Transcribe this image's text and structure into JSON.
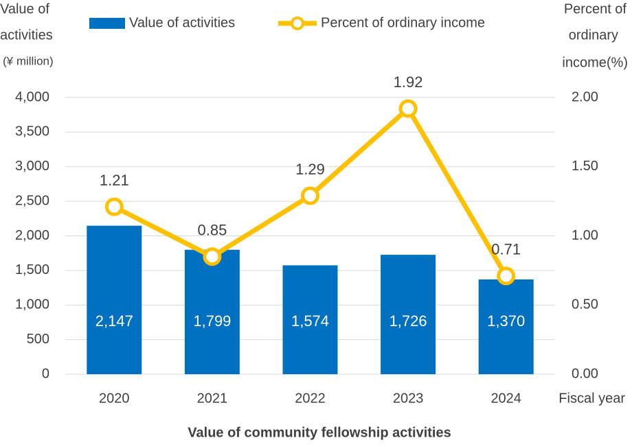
{
  "chart_data": {
    "type": "combo",
    "title": "Value of community fellowship activities",
    "ylabel": [
      "Value of",
      "activities",
      "(¥ million)"
    ],
    "y2label": [
      "Percent of",
      "ordinary",
      "income(%)"
    ],
    "xlabel": "Fiscal year",
    "categories": [
      "2020",
      "2021",
      "2022",
      "2023",
      "2024"
    ],
    "series": [
      {
        "name": "Value of activities",
        "type": "bar",
        "color": "#0070c0",
        "values": [
          2147,
          1799,
          1574,
          1726,
          1370
        ],
        "value_labels": [
          "2,147",
          "1,799",
          "1,574",
          "1,726",
          "1,370"
        ]
      },
      {
        "name": "Percent of ordinary income",
        "type": "line",
        "axis": "y2",
        "color": "#ffc000",
        "values": [
          1.21,
          0.85,
          1.29,
          1.92,
          0.71
        ]
      }
    ],
    "ylim": [
      0,
      4000
    ],
    "yticks": [
      0,
      500,
      {
        "value": 1000,
        "label": "1,000"
      },
      {
        "value": 1500,
        "label": "1,500"
      },
      {
        "value": 2000,
        "label": "2,000"
      },
      {
        "value": 2500,
        "label": "2,500"
      },
      {
        "value": 3000,
        "label": "3,000"
      },
      {
        "value": 3500,
        "label": "3,500"
      },
      {
        "value": 4000,
        "label": "4,000"
      }
    ],
    "y2lim": [
      0,
      2
    ],
    "y2ticks": [
      {
        "value": 0,
        "label": "0.00"
      },
      {
        "value": 0.5,
        "label": "0.50"
      },
      {
        "value": 1,
        "label": "1.00"
      },
      {
        "value": 1.5,
        "label": "1.50"
      },
      {
        "value": 2,
        "label": "2.00"
      }
    ],
    "grid": true
  }
}
